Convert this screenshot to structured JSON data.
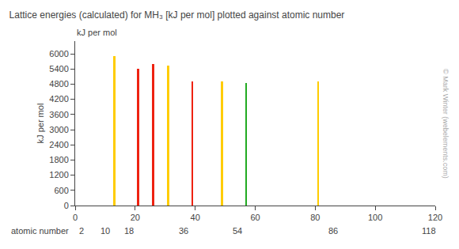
{
  "chart_data": {
    "type": "bar",
    "title": "Lattice energies (calculated) for MH₃ [kJ per mol] plotted against atomic number",
    "xlabel": "atomic number",
    "ylabel": "kJ per mol",
    "unit_label": "kJ per mol",
    "watermark": "© Mark Winter (webelements.com)",
    "x": [
      13,
      21,
      26,
      31,
      39,
      49,
      57,
      81
    ],
    "values": [
      5900,
      5400,
      5600,
      5520,
      4900,
      4900,
      4850,
      4900
    ],
    "colors": [
      "#ffcc00",
      "#ee2211",
      "#ee2211",
      "#ffcc00",
      "#ee2211",
      "#ffcc00",
      "#22aa22",
      "#ffcc00"
    ],
    "xlim": [
      0,
      120
    ],
    "xticks": [
      0,
      20,
      40,
      60,
      80,
      100,
      120
    ],
    "period_ticks": [
      2,
      10,
      18,
      36,
      54,
      86,
      118
    ],
    "ylim": [
      0,
      6500
    ],
    "yticks": [
      0,
      600,
      1200,
      1800,
      2400,
      3000,
      3600,
      4200,
      4800,
      5400,
      6000
    ],
    "grid": false
  }
}
